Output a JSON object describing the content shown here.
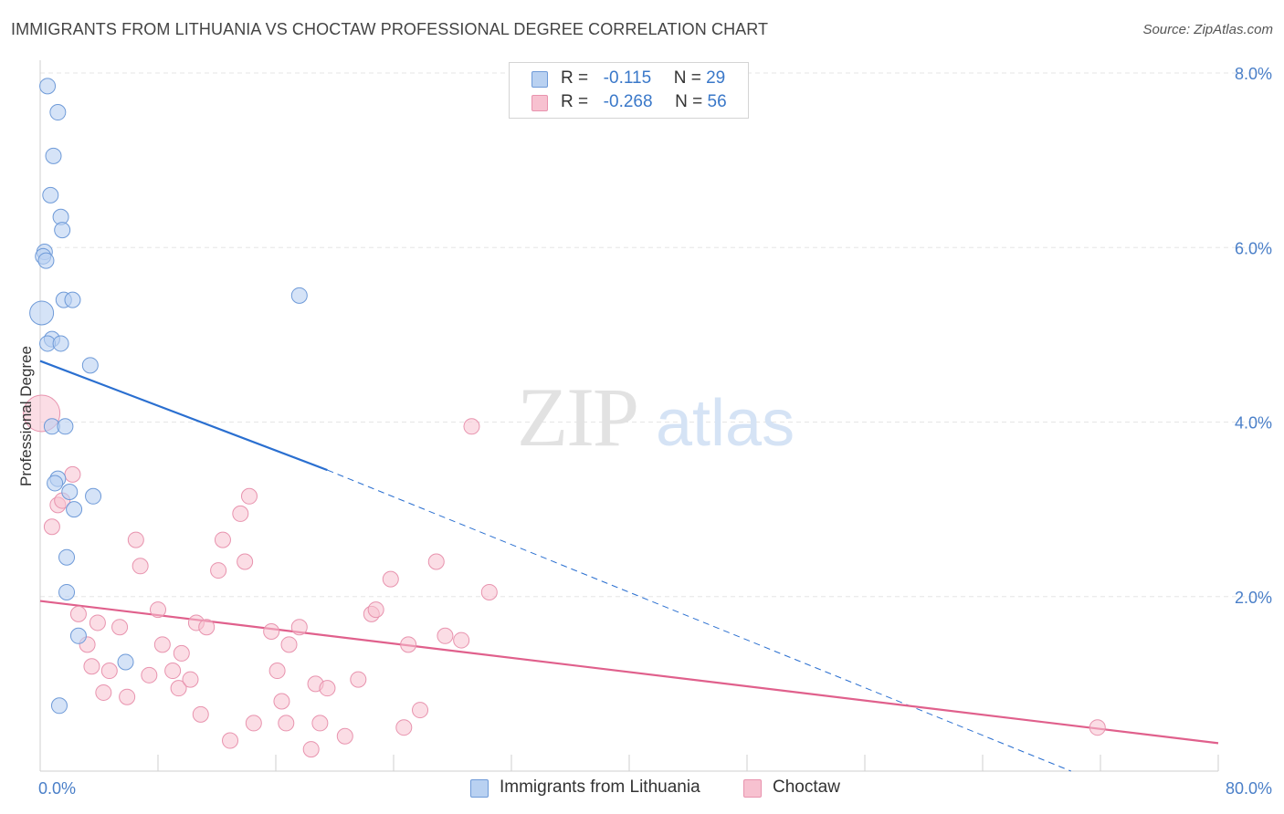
{
  "header": {
    "title": "IMMIGRANTS FROM LITHUANIA VS CHOCTAW PROFESSIONAL DEGREE CORRELATION CHART",
    "source": "Source: ZipAtlas.com"
  },
  "watermark": {
    "zip": "ZIP",
    "atlas": "atlas"
  },
  "legend": {
    "r_label": "R =",
    "n_label": "N =",
    "series": [
      {
        "r": "-0.115",
        "n": "29"
      },
      {
        "r": "-0.268",
        "n": "56"
      }
    ]
  },
  "colors": {
    "blue_fill": "#b9d1f1",
    "blue_stroke": "#6e9ad8",
    "blue_line": "#2a6fd0",
    "pink_fill": "#f7c1d0",
    "pink_stroke": "#e893ae",
    "pink_line": "#e0608c",
    "tick_label": "#4a7fc8",
    "grid": "#e6e6e6"
  },
  "chart_data": {
    "type": "scatter",
    "title": "IMMIGRANTS FROM LITHUANIA VS CHOCTAW PROFESSIONAL DEGREE CORRELATION CHART",
    "xlabel": "",
    "ylabel": "Professional Degree",
    "xlim": [
      0,
      80
    ],
    "ylim": [
      0,
      8
    ],
    "y_ticks": [
      2,
      4,
      6,
      8
    ],
    "y_tick_labels": [
      "2.0%",
      "4.0%",
      "6.0%",
      "8.0%"
    ],
    "x_tick_labels": [
      "0.0%",
      "80.0%"
    ],
    "legend_position": "top-center",
    "series": [
      {
        "name": "Immigrants from Lithuania",
        "r": -0.115,
        "n": 29,
        "points": [
          [
            0.5,
            7.85
          ],
          [
            1.2,
            7.55
          ],
          [
            0.9,
            7.05
          ],
          [
            0.7,
            6.6
          ],
          [
            1.4,
            6.35
          ],
          [
            1.5,
            6.2
          ],
          [
            0.3,
            5.95
          ],
          [
            0.2,
            5.9
          ],
          [
            0.4,
            5.85
          ],
          [
            1.6,
            5.4
          ],
          [
            2.2,
            5.4
          ],
          [
            17.6,
            5.45
          ],
          [
            0.1,
            5.25
          ],
          [
            0.8,
            4.95
          ],
          [
            0.5,
            4.9
          ],
          [
            1.4,
            4.9
          ],
          [
            3.4,
            4.65
          ],
          [
            0.8,
            3.95
          ],
          [
            1.7,
            3.95
          ],
          [
            1.2,
            3.35
          ],
          [
            1.0,
            3.3
          ],
          [
            2.0,
            3.2
          ],
          [
            3.6,
            3.15
          ],
          [
            2.3,
            3.0
          ],
          [
            1.8,
            2.45
          ],
          [
            1.8,
            2.05
          ],
          [
            2.6,
            1.55
          ],
          [
            5.8,
            1.25
          ],
          [
            1.3,
            0.75
          ]
        ],
        "trend_solid": [
          [
            0,
            4.7
          ],
          [
            19.5,
            3.45
          ]
        ],
        "trend_dashed": [
          [
            19.5,
            3.45
          ],
          [
            70,
            0.0
          ]
        ]
      },
      {
        "name": "Choctaw",
        "r": -0.268,
        "n": 56,
        "points": [
          [
            0.1,
            4.1
          ],
          [
            2.2,
            3.4
          ],
          [
            1.2,
            3.05
          ],
          [
            1.5,
            3.1
          ],
          [
            0.8,
            2.8
          ],
          [
            6.5,
            2.65
          ],
          [
            6.8,
            2.35
          ],
          [
            8.0,
            1.85
          ],
          [
            2.6,
            1.8
          ],
          [
            3.9,
            1.7
          ],
          [
            5.4,
            1.65
          ],
          [
            7.4,
            1.1
          ],
          [
            3.2,
            1.45
          ],
          [
            3.5,
            1.2
          ],
          [
            4.7,
            1.15
          ],
          [
            4.3,
            0.9
          ],
          [
            5.9,
            0.85
          ],
          [
            8.3,
            1.45
          ],
          [
            9.0,
            1.15
          ],
          [
            9.4,
            0.95
          ],
          [
            9.6,
            1.35
          ],
          [
            10.2,
            1.05
          ],
          [
            10.6,
            1.7
          ],
          [
            11.3,
            1.65
          ],
          [
            12.1,
            2.3
          ],
          [
            12.4,
            2.65
          ],
          [
            13.6,
            2.95
          ],
          [
            14.2,
            3.15
          ],
          [
            13.9,
            2.4
          ],
          [
            10.9,
            0.65
          ],
          [
            12.9,
            0.35
          ],
          [
            15.7,
            1.6
          ],
          [
            16.1,
            1.15
          ],
          [
            16.4,
            0.8
          ],
          [
            16.9,
            1.45
          ],
          [
            17.6,
            1.65
          ],
          [
            14.5,
            0.55
          ],
          [
            16.7,
            0.55
          ],
          [
            18.7,
            1.0
          ],
          [
            19.5,
            0.95
          ],
          [
            18.4,
            0.25
          ],
          [
            19.0,
            0.55
          ],
          [
            20.7,
            0.4
          ],
          [
            21.6,
            1.05
          ],
          [
            22.5,
            1.8
          ],
          [
            22.8,
            1.85
          ],
          [
            23.8,
            2.2
          ],
          [
            25.0,
            1.45
          ],
          [
            24.7,
            0.5
          ],
          [
            25.8,
            0.7
          ],
          [
            26.9,
            2.4
          ],
          [
            27.5,
            1.55
          ],
          [
            28.6,
            1.5
          ],
          [
            29.3,
            3.95
          ],
          [
            30.5,
            2.05
          ],
          [
            71.8,
            0.5
          ]
        ],
        "trend_solid": [
          [
            0,
            1.95
          ],
          [
            80,
            0.32
          ]
        ]
      }
    ]
  },
  "bottom_legend": [
    "Immigrants from Lithuania",
    "Choctaw"
  ]
}
